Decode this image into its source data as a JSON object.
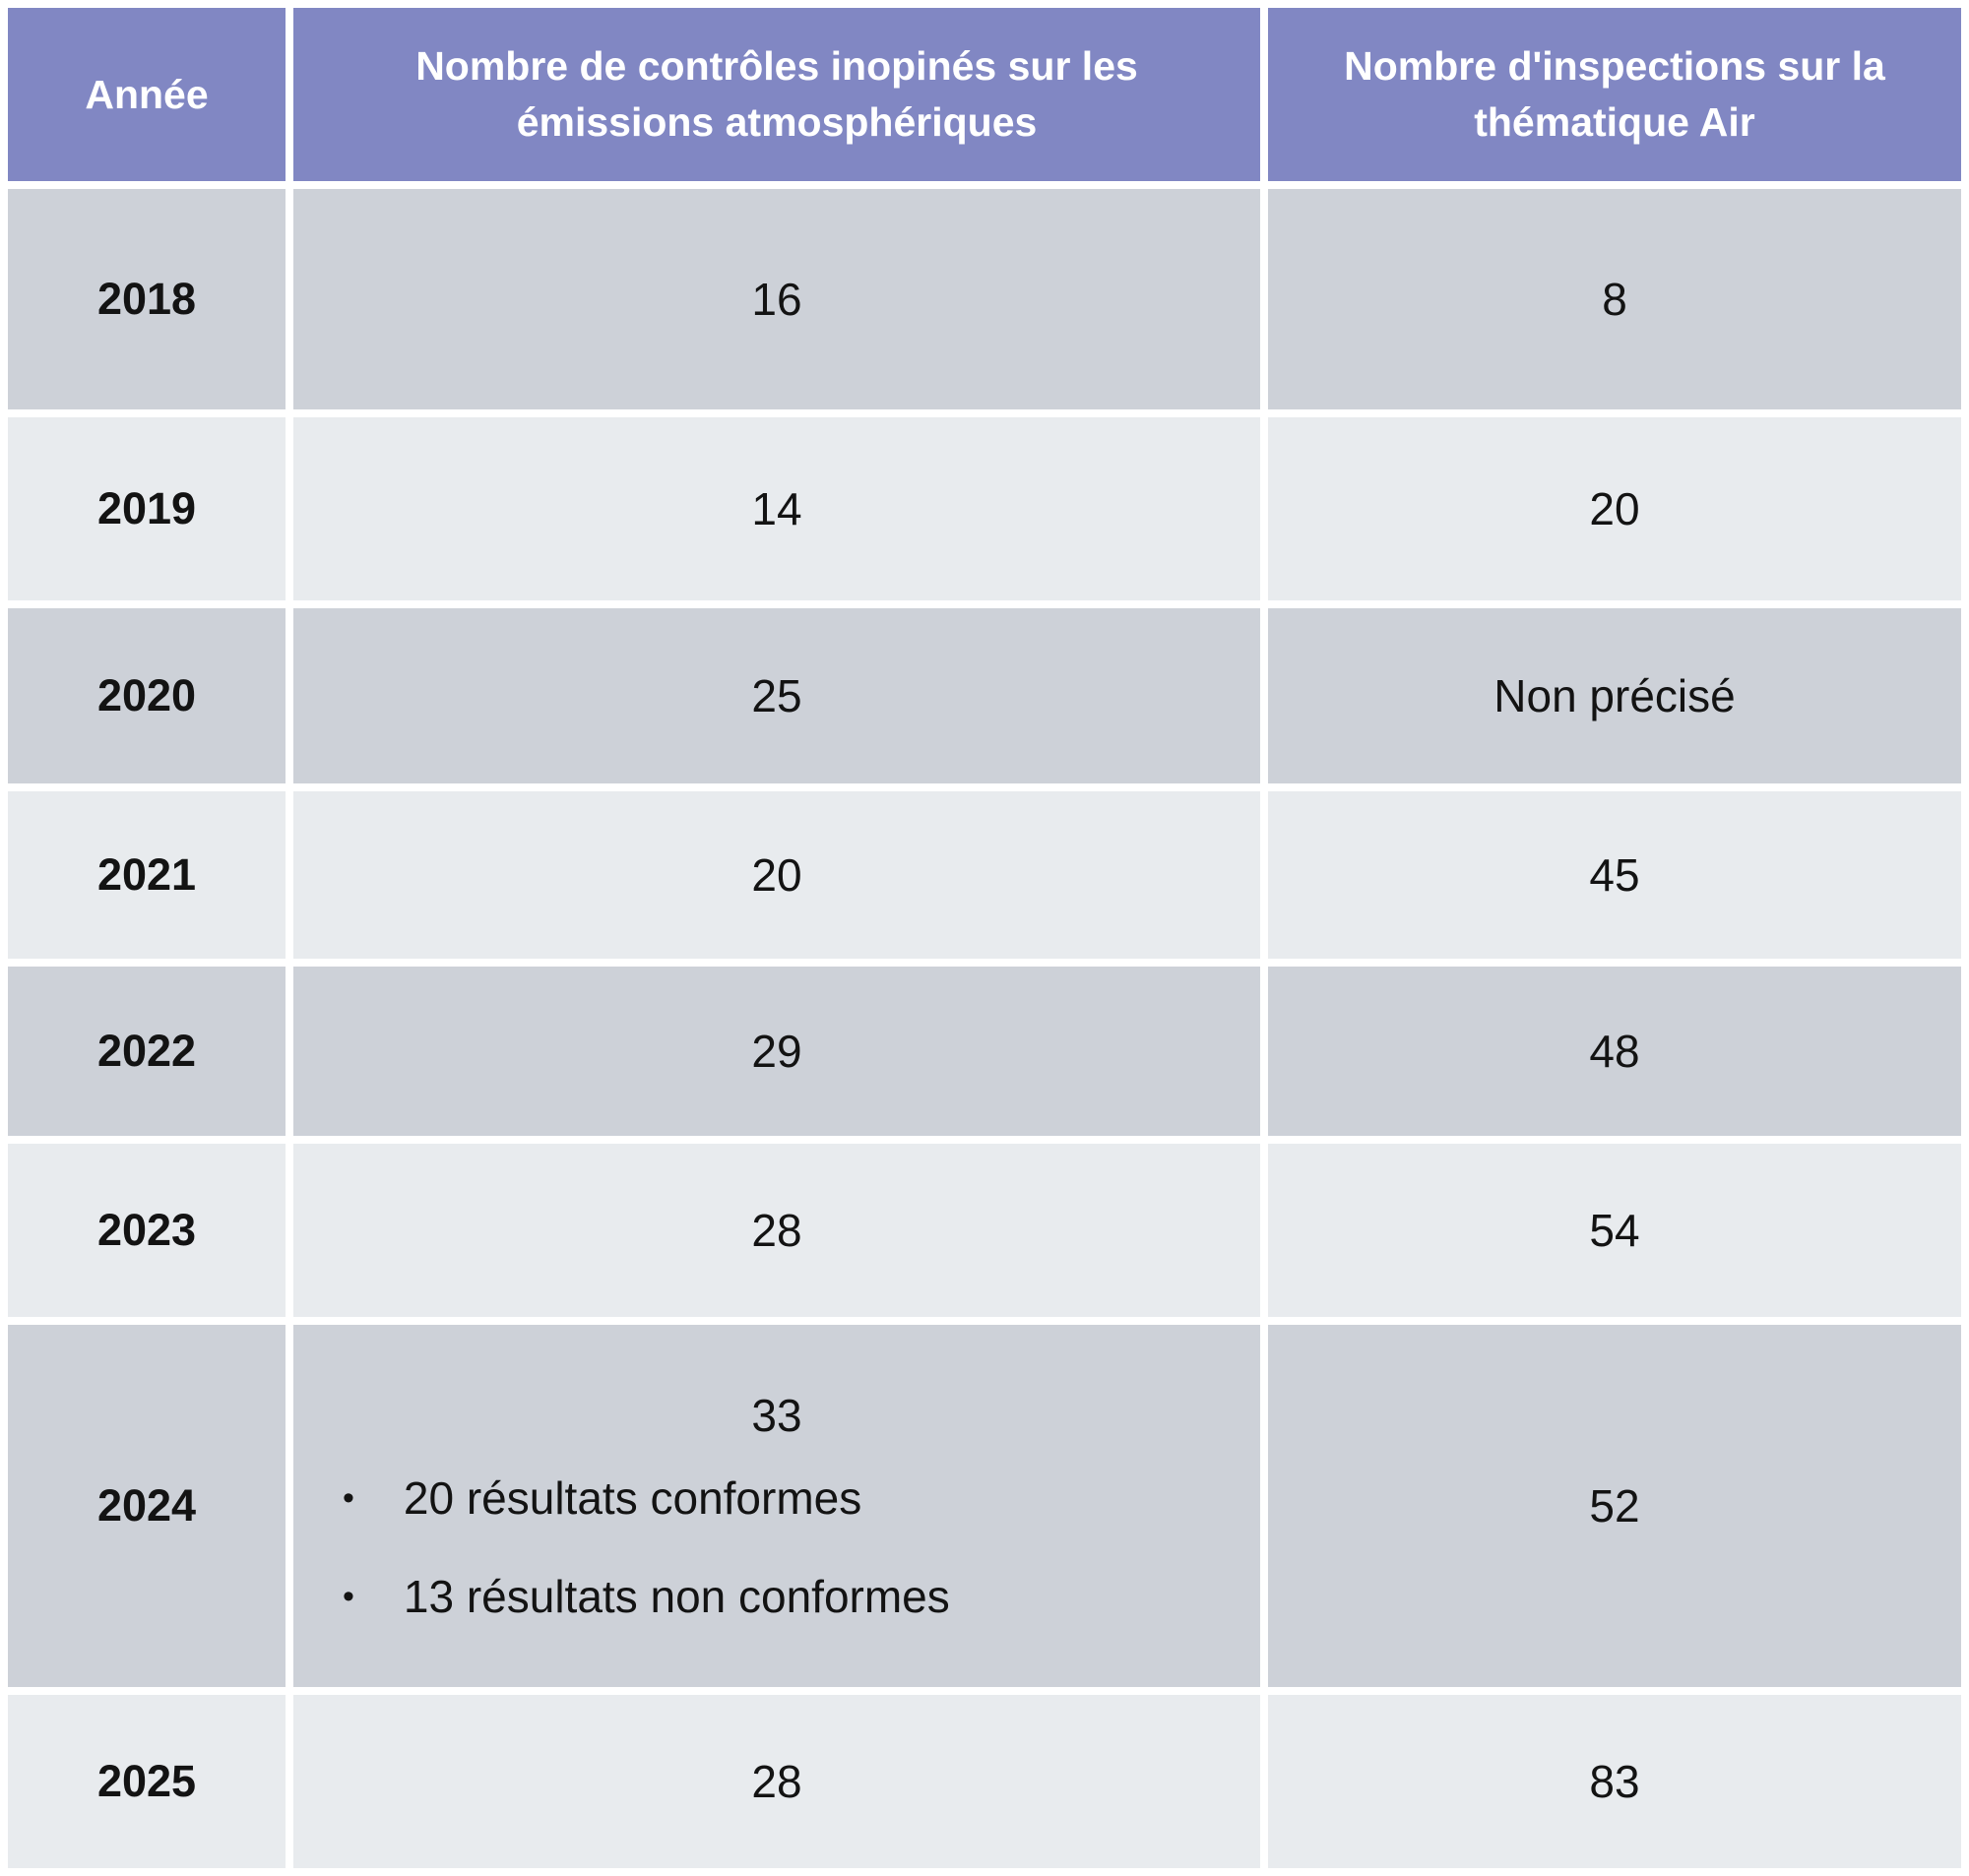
{
  "theme": {
    "header_bg": "#8187C3",
    "header_text": "#FFFFFF",
    "row_dark_bg": "#CDD1D8",
    "row_light_bg": "#E8EBEE",
    "body_text": "#131313",
    "page_bg": "#FFFFFF"
  },
  "table": {
    "bullet_char": "•",
    "columns": [
      "Année",
      "Nombre de contrôles inopinés sur les émissions atmosphériques",
      "Nombre d'inspections sur la thématique Air"
    ],
    "rows": [
      {
        "year": "2018",
        "controls": "16",
        "inspections": "8"
      },
      {
        "year": "2019",
        "controls": "14",
        "inspections": "20"
      },
      {
        "year": "2020",
        "controls": "25",
        "inspections": "Non précisé"
      },
      {
        "year": "2021",
        "controls": "20",
        "inspections": "45"
      },
      {
        "year": "2022",
        "controls": "29",
        "inspections": "48"
      },
      {
        "year": "2023",
        "controls": "28",
        "inspections": "54"
      },
      {
        "year": "2024",
        "controls": "33",
        "details": [
          "20 résultats conformes",
          "13 résultats non conformes"
        ],
        "inspections": "52"
      },
      {
        "year": "2025",
        "controls": "28",
        "inspections": "83"
      }
    ]
  }
}
